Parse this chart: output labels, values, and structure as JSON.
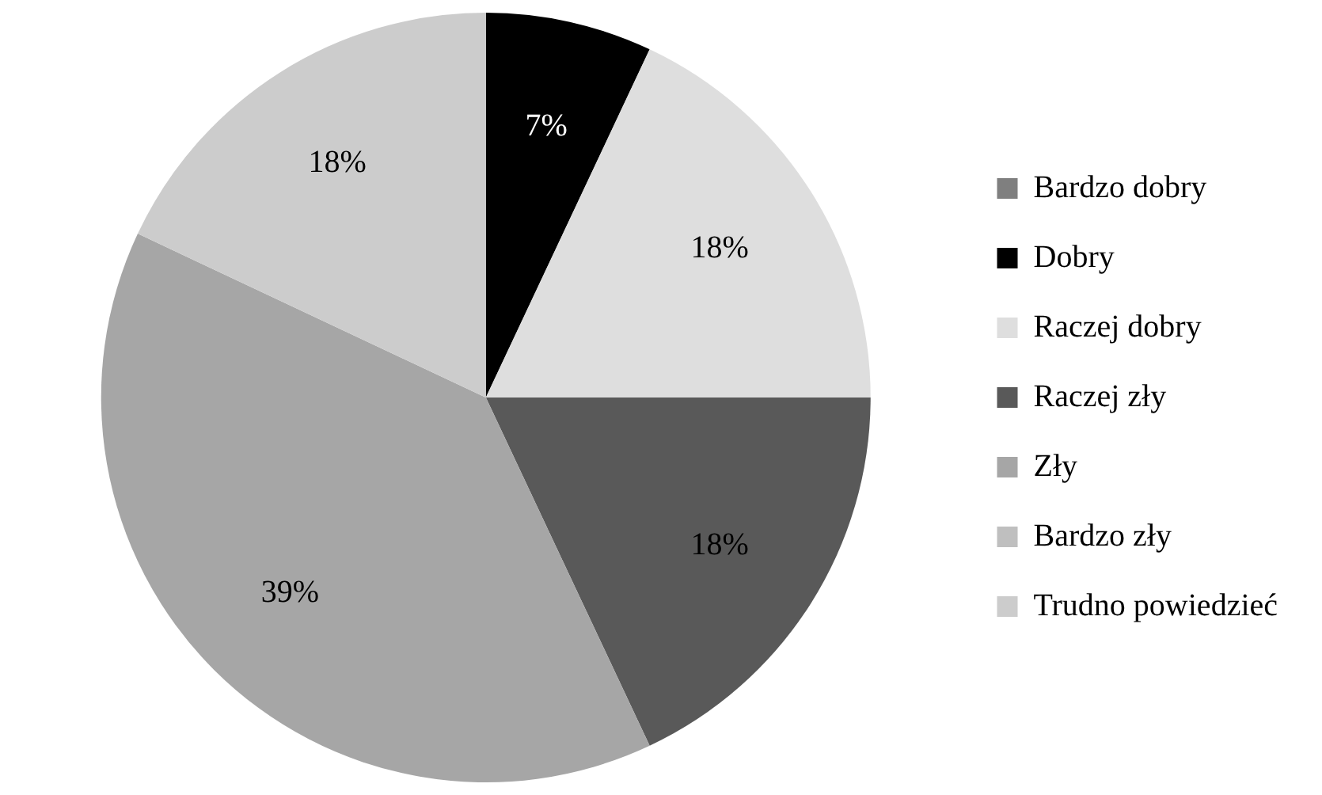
{
  "chart_data": {
    "type": "pie",
    "categories": [
      "Bardzo dobry",
      "Dobry",
      "Raczej dobry",
      "Raczej zły",
      "Zły",
      "Bardzo zły",
      "Trudno powiedzieć"
    ],
    "values": [
      0,
      7,
      18,
      18,
      39,
      0,
      18
    ],
    "colors": [
      "#7f7f7f",
      "#000000",
      "#dedede",
      "#595959",
      "#a6a6a6",
      "#bfbfbf",
      "#cccccc"
    ],
    "value_labels": [
      null,
      "7%",
      "18%",
      "18%",
      "39%",
      null,
      "18%"
    ],
    "legend": "right"
  }
}
